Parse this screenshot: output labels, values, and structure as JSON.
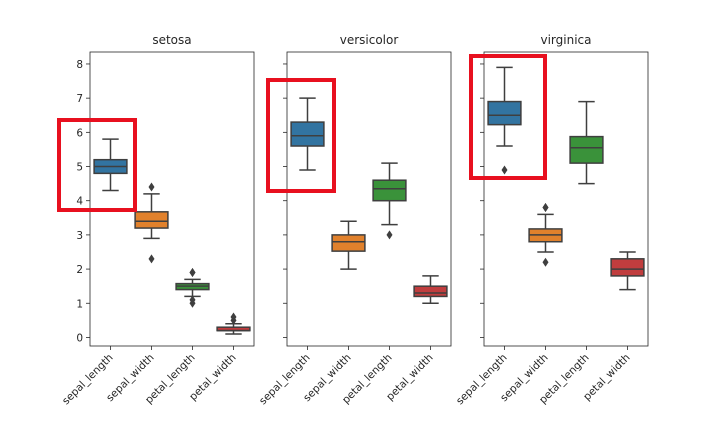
{
  "chart_data": [
    {
      "type": "box",
      "title": "setosa",
      "categories": [
        "sepal_length",
        "sepal_width",
        "petal_length",
        "petal_width"
      ],
      "ylim": [
        -0.25,
        8.35
      ],
      "yticks": [
        "0",
        "1",
        "2",
        "3",
        "4",
        "5",
        "6",
        "7",
        "8"
      ],
      "show_ytick_labels": true,
      "highlight_category": "sepal_length",
      "boxes": [
        {
          "whisker_low": 4.3,
          "q1": 4.8,
          "median": 5.0,
          "q3": 5.2,
          "whisker_high": 5.8,
          "outliers": []
        },
        {
          "whisker_low": 2.9,
          "q1": 3.2,
          "median": 3.4,
          "q3": 3.675,
          "whisker_high": 4.2,
          "outliers": [
            2.3,
            4.4
          ]
        },
        {
          "whisker_low": 1.2,
          "q1": 1.4,
          "median": 1.5,
          "q3": 1.575,
          "whisker_high": 1.7,
          "outliers": [
            1.0,
            1.1,
            1.9,
            1.9
          ]
        },
        {
          "whisker_low": 0.1,
          "q1": 0.2,
          "median": 0.2,
          "q3": 0.3,
          "whisker_high": 0.4,
          "outliers": [
            0.5,
            0.6
          ]
        }
      ]
    },
    {
      "type": "box",
      "title": "versicolor",
      "categories": [
        "sepal_length",
        "sepal_width",
        "petal_length",
        "petal_width"
      ],
      "ylim": [
        -0.25,
        8.35
      ],
      "yticks": [
        "0",
        "1",
        "2",
        "3",
        "4",
        "5",
        "6",
        "7",
        "8"
      ],
      "show_ytick_labels": false,
      "highlight_category": "sepal_length",
      "boxes": [
        {
          "whisker_low": 4.9,
          "q1": 5.6,
          "median": 5.9,
          "q3": 6.3,
          "whisker_high": 7.0,
          "outliers": []
        },
        {
          "whisker_low": 2.0,
          "q1": 2.525,
          "median": 2.8,
          "q3": 3.0,
          "whisker_high": 3.4,
          "outliers": []
        },
        {
          "whisker_low": 3.3,
          "q1": 4.0,
          "median": 4.35,
          "q3": 4.6,
          "whisker_high": 5.1,
          "outliers": [
            3.0
          ]
        },
        {
          "whisker_low": 1.0,
          "q1": 1.2,
          "median": 1.3,
          "q3": 1.5,
          "whisker_high": 1.8,
          "outliers": []
        }
      ]
    },
    {
      "type": "box",
      "title": "virginica",
      "categories": [
        "sepal_length",
        "sepal_width",
        "petal_length",
        "petal_width"
      ],
      "ylim": [
        -0.25,
        8.35
      ],
      "yticks": [
        "0",
        "1",
        "2",
        "3",
        "4",
        "5",
        "6",
        "7",
        "8"
      ],
      "show_ytick_labels": false,
      "highlight_category": "sepal_length",
      "boxes": [
        {
          "whisker_low": 5.6,
          "q1": 6.225,
          "median": 6.5,
          "q3": 6.9,
          "whisker_high": 7.9,
          "outliers": [
            4.9
          ]
        },
        {
          "whisker_low": 2.5,
          "q1": 2.8,
          "median": 3.0,
          "q3": 3.175,
          "whisker_high": 3.6,
          "outliers": [
            2.2,
            3.8,
            3.8
          ]
        },
        {
          "whisker_low": 4.5,
          "q1": 5.1,
          "median": 5.55,
          "q3": 5.875,
          "whisker_high": 6.9,
          "outliers": []
        },
        {
          "whisker_low": 1.4,
          "q1": 1.8,
          "median": 2.0,
          "q3": 2.3,
          "whisker_high": 2.5,
          "outliers": []
        }
      ]
    }
  ],
  "colors": {
    "palette": [
      "#3274a1",
      "#e1812c",
      "#3a923a",
      "#c03d3e"
    ],
    "line": "#3f3f3f",
    "highlight": "#e8101f",
    "axis": "#262626"
  }
}
